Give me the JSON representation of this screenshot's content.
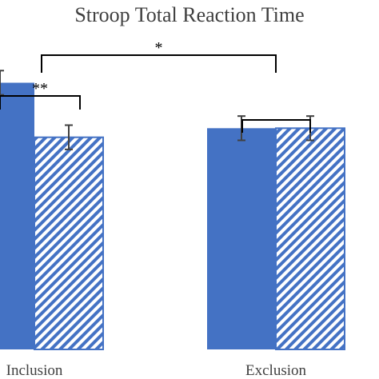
{
  "chart_data": {
    "type": "bar",
    "title": "Stroop Total Reaction Time",
    "xlabel": "",
    "ylabel": "",
    "categories": [
      "Inclusion",
      "Exclusion"
    ],
    "ylim": [
      0,
      100
    ],
    "grid": false,
    "legend": "none",
    "series": [
      {
        "values": [
          88,
          73
        ],
        "errors": [
          4,
          4
        ],
        "pattern": "solid",
        "color": "#4472C4"
      },
      {
        "values": [
          70,
          73
        ],
        "errors": [
          4,
          4
        ],
        "pattern": "diagonal-hatch",
        "color": "#4472C4"
      }
    ],
    "significance": [
      {
        "label": "**",
        "between": "within Inclusion"
      },
      {
        "label": "*",
        "between": "Inclusion vs Exclusion"
      },
      {
        "label": "",
        "between": "within Exclusion"
      }
    ],
    "colors": {
      "bar": "#4472C4",
      "errorbar": "#404040",
      "bracket": "#000000",
      "text": "#404040"
    }
  }
}
